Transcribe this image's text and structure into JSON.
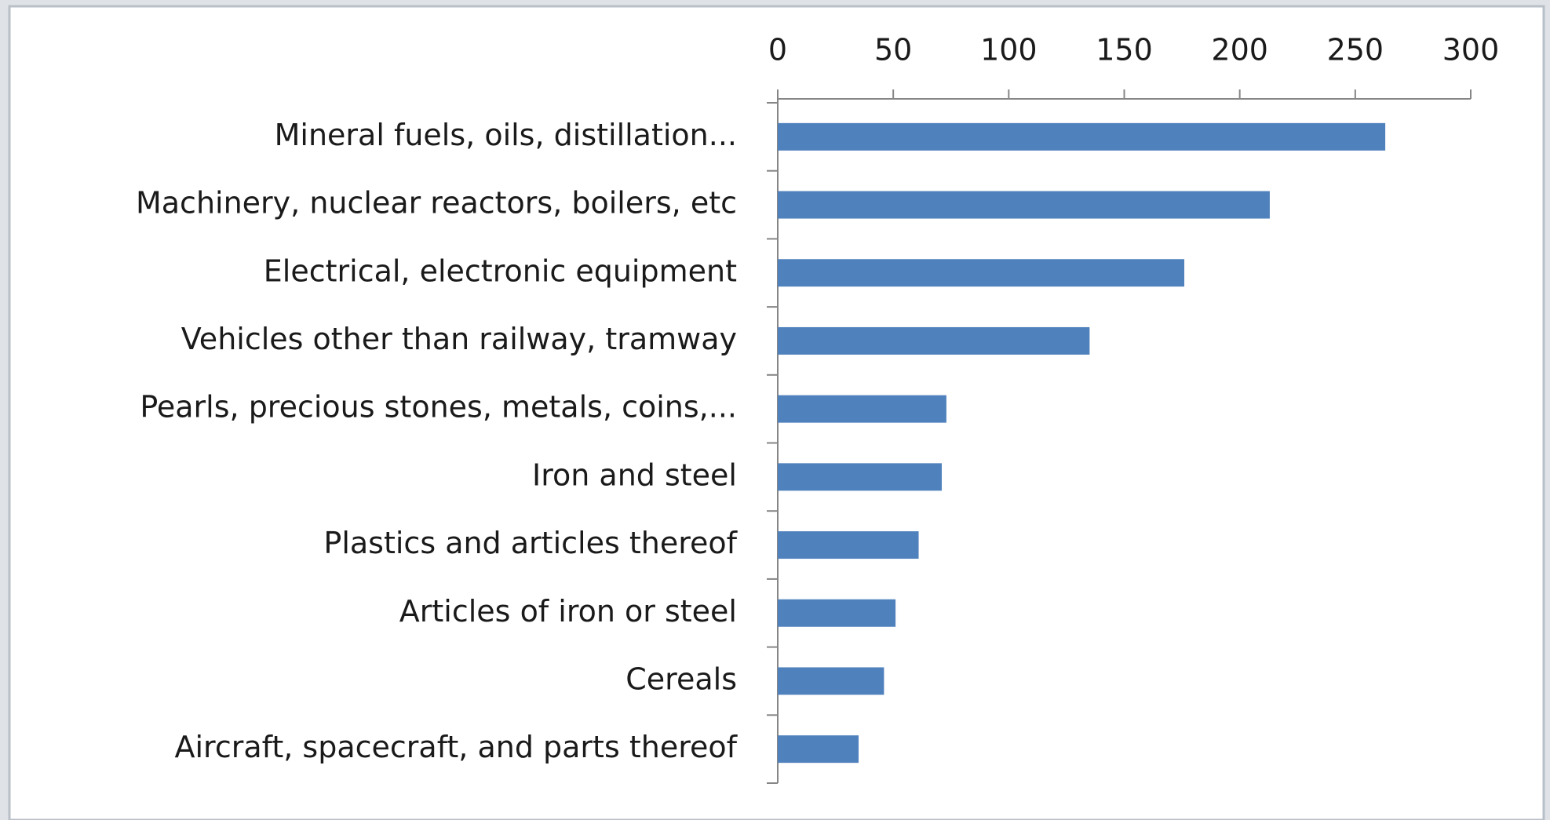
{
  "chart_data": {
    "type": "bar",
    "orientation": "horizontal",
    "categories": [
      "Mineral fuels, oils, distillation...",
      "Machinery, nuclear reactors, boilers, etc",
      "Electrical, electronic equipment",
      "Vehicles other than railway, tramway",
      "Pearls, precious stones, metals, coins,...",
      "Iron and steel",
      "Plastics and articles thereof",
      "Articles of iron or steel",
      "Cereals",
      "Aircraft, spacecraft, and parts thereof"
    ],
    "values": [
      263,
      213,
      176,
      135,
      73,
      71,
      61,
      51,
      46,
      35
    ],
    "color": "#4f81bd",
    "xlim": [
      0,
      300
    ],
    "xticks": [
      0,
      50,
      100,
      150,
      200,
      250,
      300
    ],
    "grid": false
  }
}
